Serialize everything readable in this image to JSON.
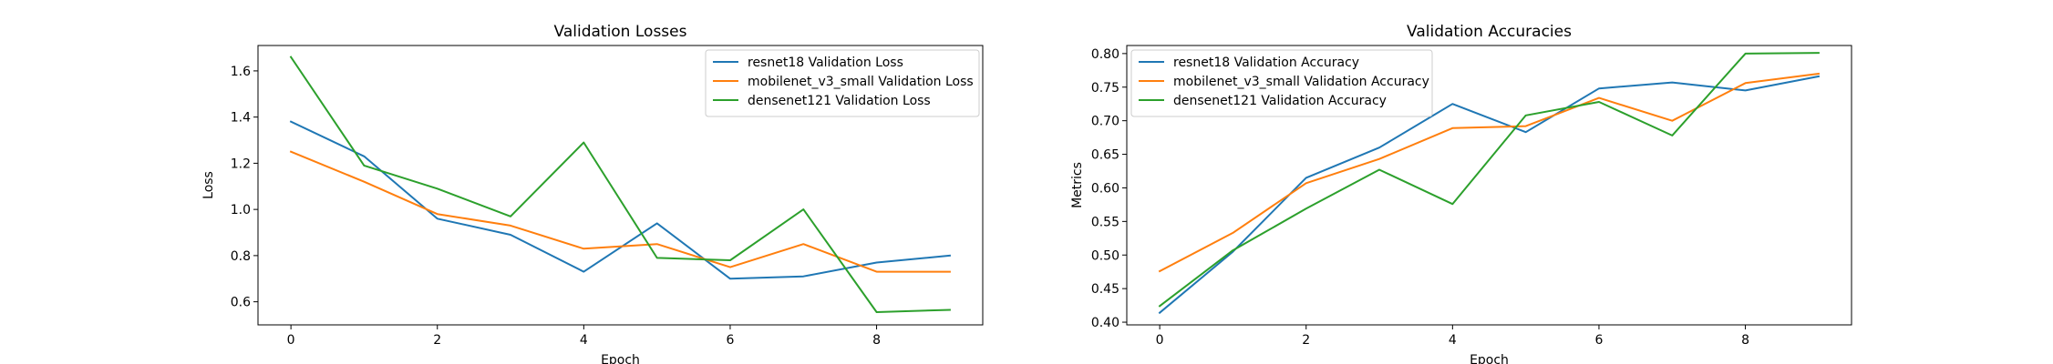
{
  "chart_data": [
    {
      "type": "line",
      "title": "Validation Losses",
      "xlabel": "Epoch",
      "ylabel": "Loss",
      "x": [
        0,
        1,
        2,
        3,
        4,
        5,
        6,
        7,
        8,
        9
      ],
      "xlim": [
        -0.45,
        9.45
      ],
      "ylim": [
        0.5,
        1.71
      ],
      "xticks": [
        0,
        2,
        4,
        6,
        8
      ],
      "yticks": [
        0.6,
        0.8,
        1.0,
        1.2,
        1.4,
        1.6
      ],
      "ytick_labels": [
        "0.6",
        "0.8",
        "1.0",
        "1.2",
        "1.4",
        "1.6"
      ],
      "legend_position": "top-right",
      "grid": false,
      "series": [
        {
          "name": "resnet18 Validation Loss",
          "color": "#1f77b4",
          "values": [
            1.38,
            1.23,
            0.96,
            0.89,
            0.73,
            0.94,
            0.7,
            0.71,
            0.77,
            0.8
          ]
        },
        {
          "name": "mobilenet_v3_small Validation Loss",
          "color": "#ff7f0e",
          "values": [
            1.25,
            1.12,
            0.98,
            0.93,
            0.83,
            0.85,
            0.75,
            0.85,
            0.73,
            0.73
          ]
        },
        {
          "name": "densenet121 Validation Loss",
          "color": "#2ca02c",
          "values": [
            1.66,
            1.19,
            1.09,
            0.97,
            1.29,
            0.79,
            0.78,
            1.0,
            0.555,
            0.565
          ]
        }
      ]
    },
    {
      "type": "line",
      "title": "Validation Accuracies",
      "xlabel": "Epoch",
      "ylabel": "Metrics",
      "x": [
        0,
        1,
        2,
        3,
        4,
        5,
        6,
        7,
        8,
        9
      ],
      "xlim": [
        -0.45,
        9.45
      ],
      "ylim": [
        0.396,
        0.812
      ],
      "xticks": [
        0,
        2,
        4,
        6,
        8
      ],
      "yticks": [
        0.4,
        0.45,
        0.5,
        0.55,
        0.6,
        0.65,
        0.7,
        0.75,
        0.8
      ],
      "ytick_labels": [
        "0.40",
        "0.45",
        "0.50",
        "0.55",
        "0.60",
        "0.65",
        "0.70",
        "0.75",
        "0.80"
      ],
      "legend_position": "top-left",
      "grid": false,
      "series": [
        {
          "name": "resnet18 Validation Accuracy",
          "color": "#1f77b4",
          "values": [
            0.414,
            0.505,
            0.615,
            0.66,
            0.725,
            0.683,
            0.748,
            0.757,
            0.745,
            0.766
          ]
        },
        {
          "name": "mobilenet_v3_small Validation Accuracy",
          "color": "#ff7f0e",
          "values": [
            0.476,
            0.533,
            0.607,
            0.643,
            0.689,
            0.692,
            0.734,
            0.7,
            0.756,
            0.77
          ]
        },
        {
          "name": "densenet121 Validation Accuracy",
          "color": "#2ca02c",
          "values": [
            0.424,
            0.507,
            0.569,
            0.627,
            0.576,
            0.708,
            0.728,
            0.678,
            0.8,
            0.801
          ]
        }
      ]
    }
  ]
}
